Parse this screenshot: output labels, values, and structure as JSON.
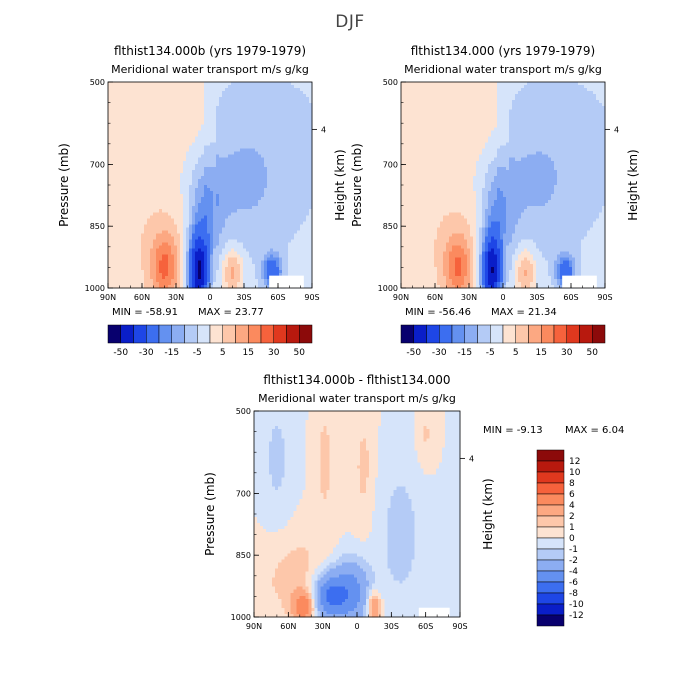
{
  "figure_title": "DJF",
  "colors": {
    "neg": [
      "#08006e",
      "#0a1ec8",
      "#1e46e6",
      "#3c6ef0",
      "#6491f0",
      "#8cadf2",
      "#b4cbf6",
      "#d6e4fa"
    ],
    "pos": [
      "#fde3d2",
      "#fdc7aa",
      "#fca882",
      "#fb8a5e",
      "#f6623c",
      "#e0381e",
      "#b8190e",
      "#8c0a0a"
    ]
  },
  "chart_data": [
    {
      "id": "panel-a",
      "type": "heatmap",
      "title": "flthist134.000b (yrs 1979-1979)",
      "subtitle": "Meridional water transport m/s g/kg",
      "ylabel": "Pressure (mb)",
      "y2label": "Height (km)",
      "y_ticks": [
        "500",
        "700",
        "850",
        "1000"
      ],
      "y_range": [
        500,
        1000
      ],
      "y2_ticks": [
        "4"
      ],
      "x_ticks": [
        "90N",
        "60N",
        "30N",
        "0",
        "30S",
        "60S",
        "90S"
      ],
      "x_range": [
        90,
        -90
      ],
      "min_label": "MIN = -58.91",
      "max_label": "MAX = 23.77",
      "min": -58.91,
      "max": 23.77,
      "colorbar": {
        "orientation": "horizontal",
        "labels": [
          "-50",
          "-30",
          "-15",
          "-5",
          "5",
          "15",
          "30",
          "50"
        ]
      }
    },
    {
      "id": "panel-b",
      "type": "heatmap",
      "title": "flthist134.000 (yrs 1979-1979)",
      "subtitle": "Meridional water transport m/s g/kg",
      "ylabel": "Pressure (mb)",
      "y2label": "Height (km)",
      "y_ticks": [
        "500",
        "700",
        "850",
        "1000"
      ],
      "y_range": [
        500,
        1000
      ],
      "y2_ticks": [
        "4"
      ],
      "x_ticks": [
        "90N",
        "60N",
        "30N",
        "0",
        "30S",
        "60S",
        "90S"
      ],
      "x_range": [
        90,
        -90
      ],
      "min_label": "MIN = -56.46",
      "max_label": "MAX = 21.34",
      "min": -56.46,
      "max": 21.34,
      "colorbar": {
        "orientation": "horizontal",
        "labels": [
          "-50",
          "-30",
          "-15",
          "-5",
          "5",
          "15",
          "30",
          "50"
        ]
      }
    },
    {
      "id": "panel-diff",
      "type": "heatmap",
      "title": "flthist134.000b - flthist134.000",
      "subtitle": "Meridional water transport m/s g/kg",
      "ylabel": "Pressure (mb)",
      "y2label": "Height (km)",
      "y_ticks": [
        "500",
        "700",
        "850",
        "1000"
      ],
      "y_range": [
        500,
        1000
      ],
      "y2_ticks": [
        "4"
      ],
      "x_ticks": [
        "90N",
        "60N",
        "30N",
        "0",
        "30S",
        "60S",
        "90S"
      ],
      "x_range": [
        90,
        -90
      ],
      "min_label": "MIN = -9.13",
      "max_label": "MAX = 6.04",
      "min": -9.13,
      "max": 6.04,
      "colorbar": {
        "orientation": "vertical",
        "labels": [
          "12",
          "10",
          "8",
          "6",
          "4",
          "2",
          "1",
          "0",
          "-1",
          "-2",
          "-4",
          "-6",
          "-8",
          "-10",
          "-12"
        ]
      }
    }
  ]
}
